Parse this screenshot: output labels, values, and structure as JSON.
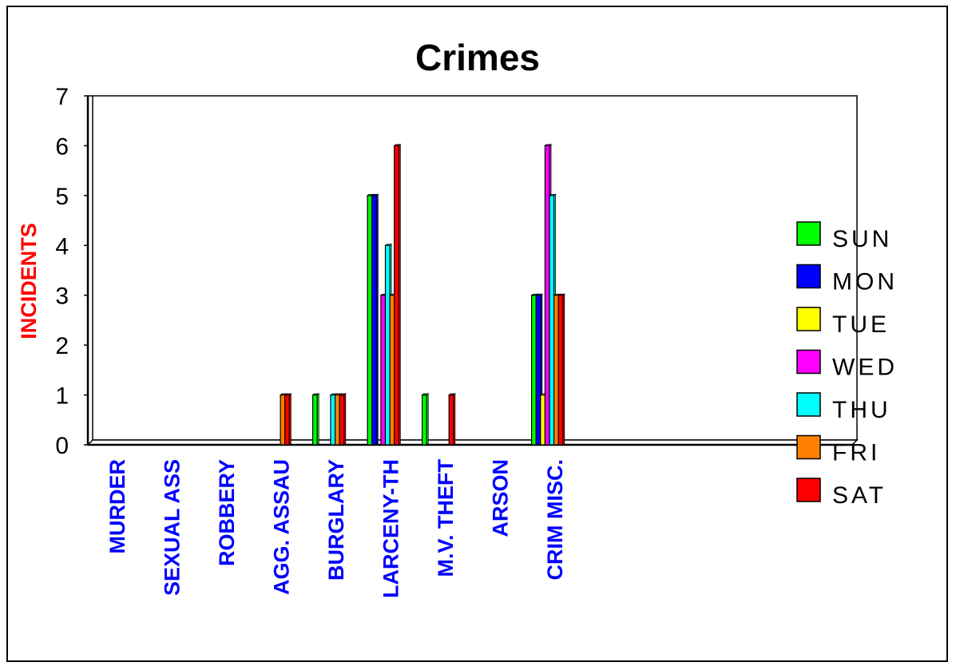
{
  "chart_data": {
    "type": "bar",
    "title": "Crimes",
    "xlabel": "",
    "ylabel": "INCIDENTS",
    "ylim": [
      0,
      7
    ],
    "yticks": [
      "0",
      "1",
      "2",
      "3",
      "4",
      "5",
      "6",
      "7"
    ],
    "grid": false,
    "legend_position": "right",
    "categories": [
      "MURDER",
      "SEXUAL ASS",
      "ROBBERY",
      "AGG. ASSAU",
      "BURGLARY",
      "LARCENY-TH",
      "M.V. THEFT",
      "ARSON",
      "CRIM MISC."
    ],
    "series": [
      {
        "name": "SUN",
        "color": "#00ff00",
        "values": [
          0,
          0,
          0,
          0,
          1,
          5,
          1,
          0,
          3
        ]
      },
      {
        "name": "MON",
        "color": "#0000ff",
        "values": [
          0,
          0,
          0,
          0,
          0,
          5,
          0,
          0,
          3
        ]
      },
      {
        "name": "TUE",
        "color": "#ffff00",
        "values": [
          0,
          0,
          0,
          0,
          0,
          0,
          0,
          0,
          1
        ]
      },
      {
        "name": "WED",
        "color": "#ff00ff",
        "values": [
          0,
          0,
          0,
          0,
          0,
          3,
          0,
          0,
          6
        ]
      },
      {
        "name": "THU",
        "color": "#00ffff",
        "values": [
          0,
          0,
          0,
          0,
          1,
          4,
          0,
          0,
          5
        ]
      },
      {
        "name": "FRI",
        "color": "#ff8000",
        "values": [
          0,
          0,
          0,
          1,
          1,
          3,
          0,
          0,
          3
        ]
      },
      {
        "name": "SAT",
        "color": "#ff0000",
        "values": [
          0,
          0,
          0,
          1,
          1,
          6,
          1,
          0,
          3
        ]
      }
    ],
    "ylabel_color": "#ff0000",
    "category_label_color": "#0000ff"
  }
}
